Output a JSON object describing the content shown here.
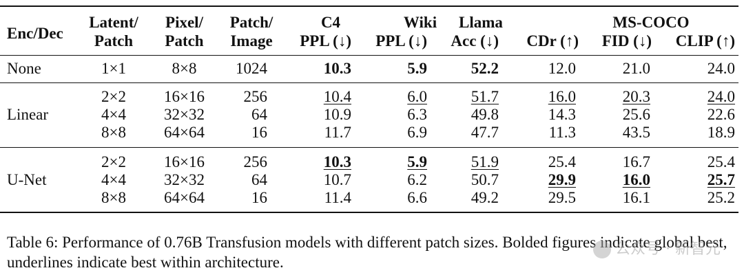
{
  "headers": {
    "enc_dec": "Enc/Dec",
    "latent_patch_1": "Latent/",
    "latent_patch_2": "Patch",
    "pixel_patch_1": "Pixel/",
    "pixel_patch_2": "Patch",
    "patch_image_1": "Patch/",
    "patch_image_2": "Image",
    "c4_1": "C4",
    "c4_2": "PPL (↓)",
    "wiki_1": "Wiki",
    "wiki_2": "PPL (↓)",
    "llama_1": "Llama",
    "llama_2": "Acc (↓)",
    "mscoco": "MS-COCO",
    "cdr": "CDr (↑)",
    "fid": "FID (↓)",
    "clip": "CLIP (↑)"
  },
  "groups": [
    {
      "name": "None",
      "rows": [
        {
          "latent": "1×1",
          "pixel": "8×8",
          "patch": "1024",
          "c4": "10.3",
          "wiki": "5.9",
          "llama": "52.2",
          "cdr": "12.0",
          "fid": "21.0",
          "clip": "24.0"
        }
      ]
    },
    {
      "name": "Linear",
      "rows": [
        {
          "latent": "2×2",
          "pixel": "16×16",
          "patch": "256",
          "c4": "10.4",
          "wiki": "6.0",
          "llama": "51.7",
          "cdr": "16.0",
          "fid": "20.3",
          "clip": "24.0"
        },
        {
          "latent": "4×4",
          "pixel": "32×32",
          "patch": "64",
          "c4": "10.9",
          "wiki": "6.3",
          "llama": "49.8",
          "cdr": "14.3",
          "fid": "25.6",
          "clip": "22.6"
        },
        {
          "latent": "8×8",
          "pixel": "64×64",
          "patch": "16",
          "c4": "11.7",
          "wiki": "6.9",
          "llama": "47.7",
          "cdr": "11.3",
          "fid": "43.5",
          "clip": "18.9"
        }
      ]
    },
    {
      "name": "U-Net",
      "rows": [
        {
          "latent": "2×2",
          "pixel": "16×16",
          "patch": "256",
          "c4": "10.3",
          "wiki": "5.9",
          "llama": "51.9",
          "cdr": "25.4",
          "fid": "16.7",
          "clip": "25.4"
        },
        {
          "latent": "4×4",
          "pixel": "32×32",
          "patch": "64",
          "c4": "10.7",
          "wiki": "6.2",
          "llama": "50.7",
          "cdr": "29.9",
          "fid": "16.0",
          "clip": "25.7"
        },
        {
          "latent": "8×8",
          "pixel": "64×64",
          "patch": "16",
          "c4": "11.4",
          "wiki": "6.6",
          "llama": "49.2",
          "cdr": "29.5",
          "fid": "16.1",
          "clip": "25.2"
        }
      ]
    }
  ],
  "caption": "Table 6: Performance of 0.76B Transfusion models with different patch sizes. Bolded figures indicate global best, underlines indicate best within architecture.",
  "watermark": "公众号 · 新智元"
}
